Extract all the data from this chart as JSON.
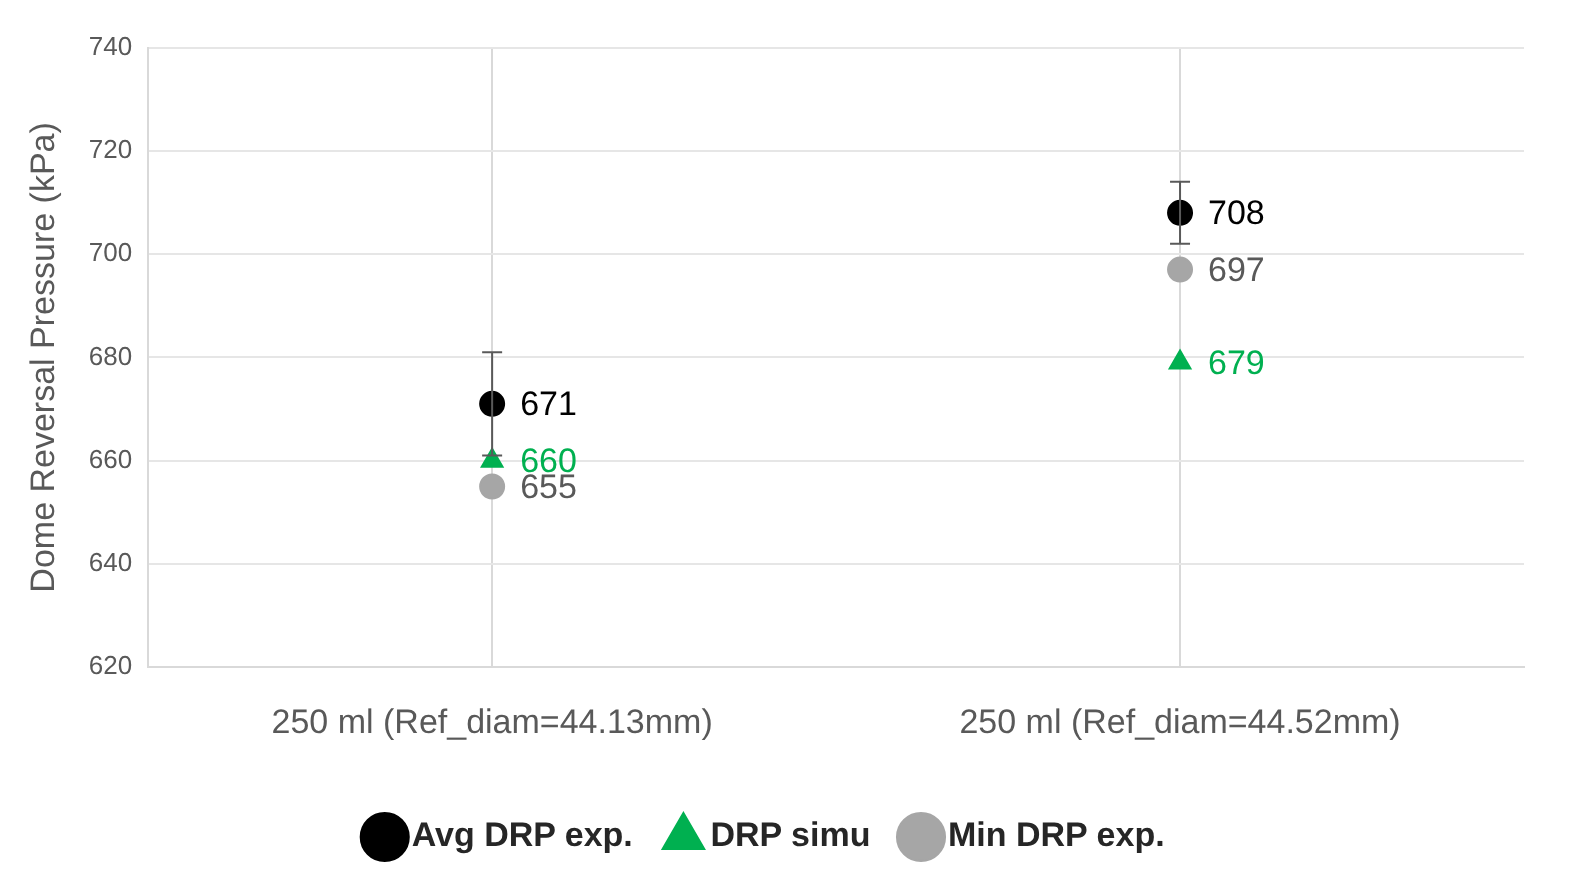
{
  "chart_data": {
    "type": "scatter",
    "ylabel": "Dome Reversal Pressure (kPa)",
    "categories": [
      "250 ml (Ref_diam=44.13mm)",
      "250 ml (Ref_diam=44.52mm)"
    ],
    "series": [
      {
        "name": "Avg DRP exp.",
        "color": "#000000",
        "values": [
          671,
          708
        ],
        "errors": [
          10,
          6
        ],
        "marker": "circle"
      },
      {
        "name": "DRP simu",
        "color": "#00b050",
        "values": [
          660,
          679
        ],
        "marker": "triangle"
      },
      {
        "name": "Min DRP exp.",
        "color": "#a6a6a6",
        "values": [
          655,
          697
        ],
        "marker": "circle"
      }
    ],
    "ylim": [
      620,
      740
    ],
    "yticks": [
      620,
      640,
      660,
      680,
      700,
      720,
      740
    ],
    "grid": true,
    "legend": "bottom",
    "data_labels": true
  }
}
